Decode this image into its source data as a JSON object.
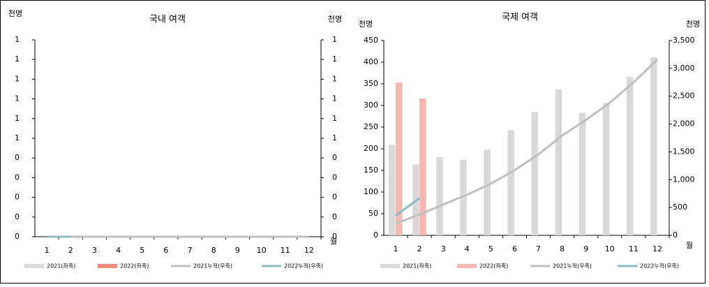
{
  "chart_data": [
    {
      "type": "bar_line",
      "title": "국내 여객",
      "y_label": "천명",
      "y2_label": "천명",
      "x_label": "월",
      "categories": [
        "1",
        "2",
        "3",
        "4",
        "5",
        "6",
        "7",
        "8",
        "9",
        "10",
        "11",
        "12"
      ],
      "ylim": [
        0,
        1
      ],
      "yticks": [
        0,
        {
          "value": 0.1,
          "label": "0"
        },
        {
          "value": 0.2,
          "label": "0"
        },
        {
          "value": 0.3,
          "label": "0"
        },
        {
          "value": 0.4,
          "label": "0"
        },
        {
          "value": 0.5,
          "label": "1"
        },
        {
          "value": 0.6,
          "label": "1"
        },
        {
          "value": 0.7,
          "label": "1"
        },
        {
          "value": 0.8,
          "label": "1"
        },
        {
          "value": 0.9,
          "label": "1"
        },
        1
      ],
      "y2lim": [
        0,
        1
      ],
      "y2ticks": [
        0,
        {
          "value": 0.1,
          "label": "0"
        },
        {
          "value": 0.2,
          "label": "0"
        },
        {
          "value": 0.3,
          "label": "0"
        },
        {
          "value": 0.4,
          "label": "0"
        },
        {
          "value": 0.5,
          "label": "1"
        },
        {
          "value": 0.6,
          "label": "1"
        },
        {
          "value": 0.7,
          "label": "1"
        },
        {
          "value": 0.8,
          "label": "1"
        },
        {
          "value": 0.9,
          "label": "1"
        },
        1
      ],
      "series": [
        {
          "name": "2021(좌축)",
          "kind": "bar",
          "color": "#d9d9d9",
          "values": [
            0,
            0,
            0,
            0,
            0,
            0,
            0,
            0,
            0,
            0,
            0,
            0
          ]
        },
        {
          "name": "2022(좌축)",
          "kind": "bar",
          "color": "#ec8b7e",
          "values": [
            0,
            0,
            null,
            null,
            null,
            null,
            null,
            null,
            null,
            null,
            null,
            null
          ]
        },
        {
          "name": "2021누적(우축)",
          "kind": "line",
          "axis": "y2",
          "color": "#bfbfbf",
          "values": [
            0,
            0,
            0,
            0,
            0,
            0,
            0,
            0,
            0,
            0,
            0,
            0
          ]
        },
        {
          "name": "2022누적(우축)",
          "kind": "line",
          "axis": "y2",
          "color": "#8fb8c0",
          "values": [
            0,
            0,
            null,
            null,
            null,
            null,
            null,
            null,
            null,
            null,
            null,
            null
          ]
        }
      ]
    },
    {
      "type": "bar_line",
      "title": "국제 여객",
      "y_label": "천명",
      "y2_label": "천명",
      "x_label": "월",
      "categories": [
        "1",
        "2",
        "3",
        "4",
        "5",
        "6",
        "7",
        "8",
        "9",
        "10",
        "11",
        "12"
      ],
      "ylim": [
        0,
        450
      ],
      "yticks": [
        0,
        50,
        100,
        150,
        200,
        250,
        300,
        350,
        400,
        450
      ],
      "y2lim": [
        0,
        3500
      ],
      "y2ticks": [
        0,
        500,
        {
          "value": 1000,
          "label": "1,000"
        },
        {
          "value": 1500,
          "label": "1,500"
        },
        {
          "value": 2000,
          "label": "2,000"
        },
        {
          "value": 2500,
          "label": "2,500"
        },
        {
          "value": 3000,
          "label": "3,000"
        },
        {
          "value": 3500,
          "label": "3,500"
        }
      ],
      "series": [
        {
          "name": "2021(좌축)",
          "kind": "bar",
          "color": "#d9d9d9",
          "values": [
            209,
            164,
            181,
            175,
            198,
            243,
            285,
            337,
            283,
            306,
            366,
            411
          ]
        },
        {
          "name": "2022(좌축)",
          "kind": "bar",
          "color": "#f4b9b2",
          "values": [
            353,
            316,
            null,
            null,
            null,
            null,
            null,
            null,
            null,
            null,
            null,
            null
          ]
        },
        {
          "name": "2021누적(우축)",
          "kind": "line",
          "axis": "y2",
          "color": "#bfbfbf",
          "values": [
            209,
            373,
            554,
            729,
            927,
            1170,
            1455,
            1792,
            2075,
            2381,
            2747,
            3158
          ]
        },
        {
          "name": "2022누적(우축)",
          "kind": "line",
          "axis": "y2",
          "color": "#8fb8c0",
          "values": [
            353,
            669,
            null,
            null,
            null,
            null,
            null,
            null,
            null,
            null,
            null,
            null
          ]
        }
      ]
    }
  ]
}
